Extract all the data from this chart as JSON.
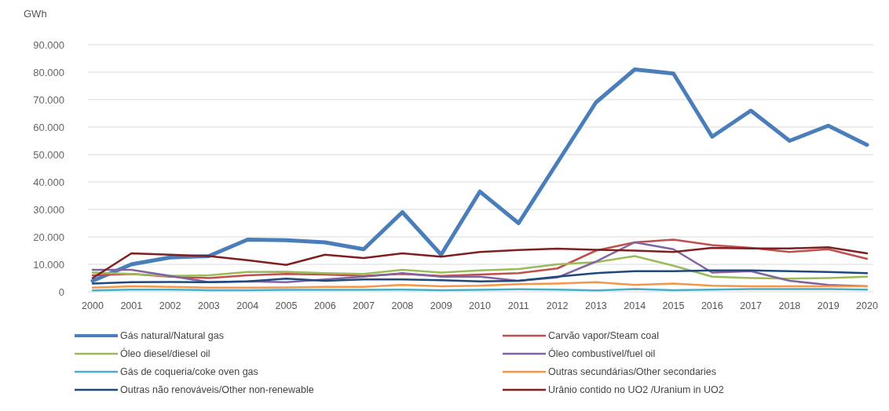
{
  "chart_data": {
    "type": "line",
    "ylabel": "GWh",
    "categories": [
      "2000",
      "2001",
      "2002",
      "2003",
      "2004",
      "2005",
      "2006",
      "2007",
      "2008",
      "2009",
      "2010",
      "2011",
      "2012",
      "2013",
      "2014",
      "2015",
      "2016",
      "2017",
      "2018",
      "2019",
      "2020"
    ],
    "series": [
      {
        "name": "Gás natural/Natural gas",
        "color": "#4a7ebb",
        "values": [
          4000,
          10000,
          12500,
          13000,
          19000,
          18800,
          18000,
          15500,
          29000,
          13500,
          36500,
          25000,
          47000,
          69000,
          81000,
          79500,
          56500,
          66000,
          55000,
          60500,
          53500
        ]
      },
      {
        "name": "Carvão vapor/Steam coal",
        "color": "#c0504d",
        "values": [
          6000,
          6500,
          5500,
          5000,
          6000,
          6500,
          6300,
          5800,
          6500,
          5800,
          6300,
          6800,
          8500,
          15000,
          18000,
          19000,
          17000,
          16000,
          14500,
          15500,
          12000
        ]
      },
      {
        "name": "Óleo diesel/diesel oil",
        "color": "#9bbb59",
        "values": [
          7000,
          6500,
          5800,
          6000,
          7200,
          7300,
          6800,
          6500,
          8000,
          7000,
          7800,
          8300,
          10000,
          10800,
          13000,
          9500,
          5500,
          5000,
          4800,
          5000,
          5500
        ]
      },
      {
        "name": "Óleo combustível/fuel oil",
        "color": "#8064a2",
        "values": [
          8000,
          8000,
          5800,
          3500,
          3800,
          3500,
          4500,
          5500,
          6800,
          5500,
          5500,
          4000,
          5200,
          11000,
          18000,
          15500,
          7000,
          7500,
          4000,
          2500,
          2000
        ]
      },
      {
        "name": "Gás de coqueria/coke oven gas",
        "color": "#4bacc6",
        "values": [
          500,
          800,
          800,
          600,
          600,
          700,
          700,
          700,
          800,
          600,
          700,
          900,
          800,
          500,
          1000,
          600,
          800,
          1000,
          1000,
          1000,
          800
        ]
      },
      {
        "name": "Outras secundárias/Other secondaries",
        "color": "#f79646",
        "values": [
          1500,
          2000,
          1800,
          1500,
          1500,
          1600,
          1800,
          1800,
          2500,
          2000,
          2200,
          2800,
          3000,
          3500,
          2500,
          3000,
          2200,
          2000,
          2000,
          2000,
          2000
        ]
      },
      {
        "name": "Outras não renováveis/Other non-renewable",
        "color": "#1f497d",
        "values": [
          3000,
          3500,
          3600,
          3500,
          3800,
          4800,
          4000,
          4500,
          4500,
          4200,
          3800,
          4000,
          5500,
          6800,
          7500,
          7500,
          7800,
          7800,
          7500,
          7200,
          6800
        ]
      },
      {
        "name": "Urânio contido no UO2 /Uranium in UO2",
        "color": "#7f1f1f",
        "values": [
          5000,
          14000,
          13500,
          13000,
          11500,
          9800,
          13500,
          12300,
          14000,
          12800,
          14500,
          15200,
          15700,
          15300,
          15000,
          14500,
          16000,
          15800,
          15800,
          16200,
          14000
        ]
      }
    ],
    "ylim": [
      0,
      90000
    ],
    "yticks": [
      {
        "value": 0,
        "label": "0"
      },
      {
        "value": 10000,
        "label": "10.000"
      },
      {
        "value": 20000,
        "label": "20.000"
      },
      {
        "value": 30000,
        "label": "30.000"
      },
      {
        "value": 40000,
        "label": "40.000"
      },
      {
        "value": 50000,
        "label": "50.000"
      },
      {
        "value": 60000,
        "label": "60.000"
      },
      {
        "value": 70000,
        "label": "70.000"
      },
      {
        "value": 80000,
        "label": "80.000"
      },
      {
        "value": 90000,
        "label": "90.000"
      }
    ],
    "grid": "y",
    "legend": "bottom",
    "marker": "none",
    "line_style": "solid"
  }
}
